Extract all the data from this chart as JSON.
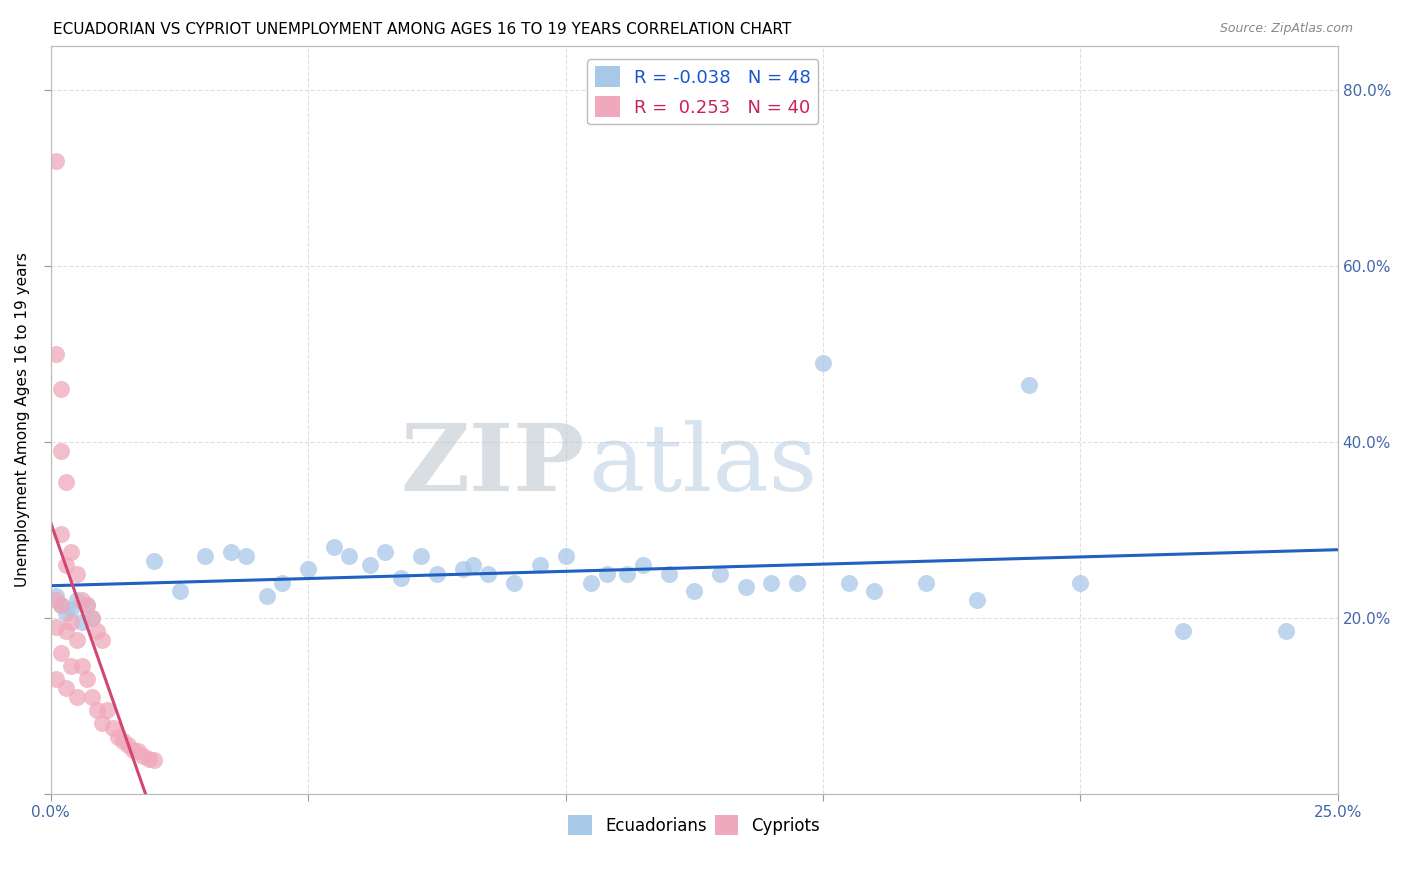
{
  "title": "ECUADORIAN VS CYPRIOT UNEMPLOYMENT AMONG AGES 16 TO 19 YEARS CORRELATION CHART",
  "source": "Source: ZipAtlas.com",
  "ylabel": "Unemployment Among Ages 16 to 19 years",
  "xlim": [
    0.0,
    0.25
  ],
  "ylim": [
    0.0,
    0.85
  ],
  "y_ticks": [
    0.0,
    0.2,
    0.4,
    0.6,
    0.8
  ],
  "y_tick_labels": [
    "",
    "20.0%",
    "40.0%",
    "60.0%",
    "80.0%"
  ],
  "ecuador_R": -0.038,
  "ecuador_N": 48,
  "cypriot_R": 0.253,
  "cypriot_N": 40,
  "ecuador_color": "#a8c8e8",
  "cypriot_color": "#f0a8bc",
  "ecuador_line_color": "#2060c0",
  "cypriot_line_color": "#d04870",
  "ecuadorian_points_x": [
    0.001,
    0.002,
    0.003,
    0.004,
    0.005,
    0.006,
    0.007,
    0.008,
    0.02,
    0.025,
    0.03,
    0.035,
    0.038,
    0.042,
    0.045,
    0.05,
    0.055,
    0.058,
    0.062,
    0.065,
    0.068,
    0.072,
    0.075,
    0.08,
    0.082,
    0.085,
    0.09,
    0.095,
    0.1,
    0.105,
    0.108,
    0.112,
    0.115,
    0.12,
    0.125,
    0.13,
    0.135,
    0.14,
    0.145,
    0.15,
    0.155,
    0.16,
    0.17,
    0.18,
    0.19,
    0.2,
    0.22,
    0.24
  ],
  "ecuadorian_points_y": [
    0.225,
    0.215,
    0.205,
    0.21,
    0.22,
    0.195,
    0.215,
    0.2,
    0.265,
    0.23,
    0.27,
    0.275,
    0.27,
    0.225,
    0.24,
    0.255,
    0.28,
    0.27,
    0.26,
    0.275,
    0.245,
    0.27,
    0.25,
    0.255,
    0.26,
    0.25,
    0.24,
    0.26,
    0.27,
    0.24,
    0.25,
    0.25,
    0.26,
    0.25,
    0.23,
    0.25,
    0.235,
    0.24,
    0.24,
    0.49,
    0.24,
    0.23,
    0.24,
    0.22,
    0.465,
    0.24,
    0.185,
    0.185
  ],
  "cypriot_points_x": [
    0.001,
    0.001,
    0.001,
    0.001,
    0.001,
    0.002,
    0.002,
    0.002,
    0.002,
    0.002,
    0.003,
    0.003,
    0.003,
    0.003,
    0.004,
    0.004,
    0.004,
    0.005,
    0.005,
    0.005,
    0.006,
    0.006,
    0.007,
    0.007,
    0.008,
    0.008,
    0.009,
    0.009,
    0.01,
    0.01,
    0.011,
    0.012,
    0.013,
    0.014,
    0.015,
    0.016,
    0.017,
    0.018,
    0.019,
    0.02
  ],
  "cypriot_points_y": [
    0.72,
    0.5,
    0.22,
    0.19,
    0.13,
    0.46,
    0.39,
    0.295,
    0.215,
    0.16,
    0.355,
    0.26,
    0.185,
    0.12,
    0.275,
    0.195,
    0.145,
    0.25,
    0.175,
    0.11,
    0.22,
    0.145,
    0.215,
    0.13,
    0.2,
    0.11,
    0.185,
    0.095,
    0.175,
    0.08,
    0.095,
    0.075,
    0.065,
    0.06,
    0.055,
    0.05,
    0.048,
    0.043,
    0.04,
    0.038
  ],
  "watermark_zip": "ZIP",
  "watermark_atlas": "atlas",
  "background_color": "#ffffff",
  "grid_color": "#e0e0e0"
}
